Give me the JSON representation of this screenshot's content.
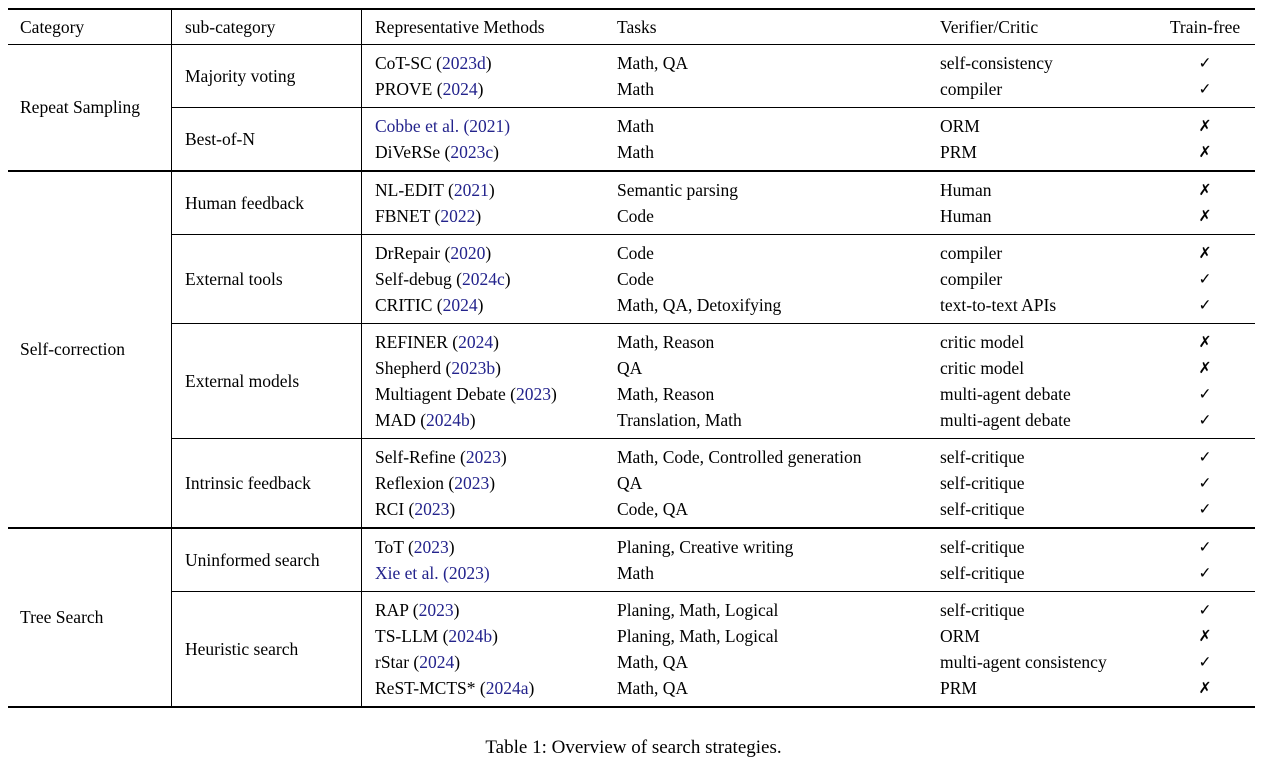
{
  "colors": {
    "citation_blue": "#23238C",
    "text": "#000000",
    "rule": "#000000"
  },
  "caption": {
    "text": "Table 1: Overview of search strategies."
  },
  "tbl": {
    "headers": [
      "Category",
      "sub-category",
      "Representative Methods",
      "Tasks",
      "Verifier/Critic",
      "Train-free"
    ],
    "sections": [
      {
        "category": "Repeat Sampling",
        "groups": [
          {
            "sub": "Majority voting",
            "rows": [
              {
                "pre": "CoT-SC (",
                "cite": "2023d",
                "post": ")",
                "tasks": "Math, QA",
                "verifier": "self-consistency",
                "mark": "✓"
              },
              {
                "pre": "PROVE (",
                "cite": "2024",
                "post": ")",
                "tasks": "Math",
                "verifier": "compiler",
                "mark": "✓"
              }
            ]
          },
          {
            "sub": "Best-of-N",
            "rows": [
              {
                "pre": "",
                "cite": "Cobbe et al. (2021)",
                "post": "",
                "tasks": "Math",
                "verifier": "ORM",
                "mark": "✗"
              },
              {
                "pre": "DiVeRSe (",
                "cite": "2023c",
                "post": ")",
                "tasks": "Math",
                "verifier": "PRM",
                "mark": "✗"
              }
            ]
          }
        ]
      },
      {
        "category": "Self-correction",
        "groups": [
          {
            "sub": "Human feedback",
            "rows": [
              {
                "pre": "NL-EDIT (",
                "cite": "2021",
                "post": ")",
                "tasks": "Semantic parsing",
                "verifier": "Human",
                "mark": "✗"
              },
              {
                "pre": "FBNET (",
                "cite": "2022",
                "post": ")",
                "tasks": "Code",
                "verifier": "Human",
                "mark": "✗"
              }
            ]
          },
          {
            "sub": "External tools",
            "rows": [
              {
                "pre": "DrRepair (",
                "cite": "2020",
                "post": ")",
                "tasks": "Code",
                "verifier": "compiler",
                "mark": "✗"
              },
              {
                "pre": "Self-debug (",
                "cite": "2024c",
                "post": ")",
                "tasks": "Code",
                "verifier": "compiler",
                "mark": "✓"
              },
              {
                "pre": "CRITIC (",
                "cite": "2024",
                "post": ")",
                "tasks": "Math, QA, Detoxifying",
                "verifier": "text-to-text APIs",
                "mark": "✓"
              }
            ]
          },
          {
            "sub": "External models",
            "rows": [
              {
                "pre": "REFINER (",
                "cite": "2024",
                "post": ")",
                "tasks": "Math, Reason",
                "verifier": "critic model",
                "mark": "✗"
              },
              {
                "pre": "Shepherd (",
                "cite": "2023b",
                "post": ")",
                "tasks": "QA",
                "verifier": "critic model",
                "mark": "✗"
              },
              {
                "pre": "Multiagent Debate (",
                "cite": "2023",
                "post": ")",
                "tasks": "Math, Reason",
                "verifier": "multi-agent debate",
                "mark": "✓"
              },
              {
                "pre": "MAD (",
                "cite": "2024b",
                "post": ")",
                "tasks": "Translation, Math",
                "verifier": "multi-agent debate",
                "mark": "✓"
              }
            ]
          },
          {
            "sub": "Intrinsic feedback",
            "rows": [
              {
                "pre": "Self-Refine (",
                "cite": "2023",
                "post": ")",
                "tasks": "Math, Code, Controlled generation",
                "verifier": "self-critique",
                "mark": "✓"
              },
              {
                "pre": "Reflexion (",
                "cite": "2023",
                "post": ")",
                "tasks": "QA",
                "verifier": "self-critique",
                "mark": "✓"
              },
              {
                "pre": "RCI (",
                "cite": "2023",
                "post": ")",
                "tasks": "Code, QA",
                "verifier": "self-critique",
                "mark": "✓"
              }
            ]
          }
        ]
      },
      {
        "category": "Tree Search",
        "groups": [
          {
            "sub": "Uninformed search",
            "rows": [
              {
                "pre": "ToT (",
                "cite": "2023",
                "post": ")",
                "tasks": "Planing, Creative writing",
                "verifier": "self-critique",
                "mark": "✓"
              },
              {
                "pre": "",
                "cite": "Xie et al. (2023)",
                "post": "",
                "tasks": "Math",
                "verifier": "self-critique",
                "mark": "✓"
              }
            ]
          },
          {
            "sub": "Heuristic search",
            "rows": [
              {
                "pre": "RAP (",
                "cite": "2023",
                "post": ")",
                "tasks": "Planing, Math, Logical",
                "verifier": "self-critique",
                "mark": "✓"
              },
              {
                "pre": "TS-LLM (",
                "cite": "2024b",
                "post": ")",
                "tasks": "Planing, Math, Logical",
                "verifier": "ORM",
                "mark": "✗"
              },
              {
                "pre": "rStar (",
                "cite": "2024",
                "post": ")",
                "tasks": "Math, QA",
                "verifier": "multi-agent consistency",
                "mark": "✓"
              },
              {
                "pre": "ReST-MCTS* (",
                "cite": "2024a",
                "post": ")",
                "tasks": "Math, QA",
                "verifier": "PRM",
                "mark": "✗"
              }
            ]
          }
        ]
      }
    ]
  }
}
